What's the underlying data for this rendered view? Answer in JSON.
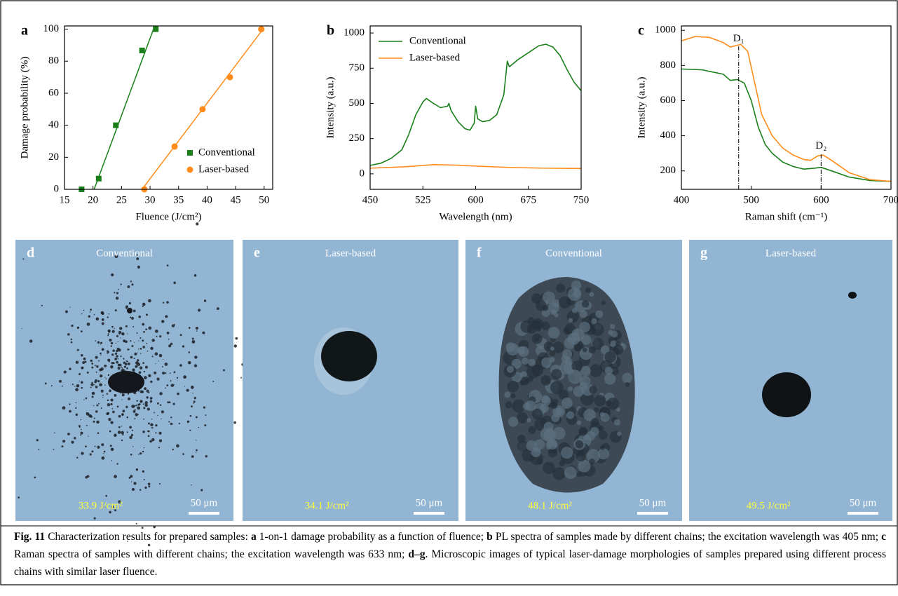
{
  "chart_data": [
    {
      "type": "scatter",
      "panel": "a",
      "x_label": "Fluence (J/cm²)",
      "y_label": "Damage probability (%)",
      "xlim": [
        15,
        51.5
      ],
      "ylim": [
        0,
        102
      ],
      "xticks": [
        15,
        20,
        25,
        30,
        35,
        40,
        45,
        50
      ],
      "yticks": [
        0,
        20,
        40,
        60,
        80,
        100
      ],
      "legend": "lower right",
      "series": [
        {
          "name": "Conventional",
          "color": "#1a7f1a",
          "marker": "square",
          "x": [
            18,
            21,
            24,
            28.6,
            31
          ],
          "values": [
            0,
            6.7,
            40,
            86.7,
            100
          ],
          "fit": {
            "x": [
              20.2,
              30.6
            ],
            "values": [
              0,
              100
            ]
          }
        },
        {
          "name": "Laser-based",
          "color": "#ff8c1a",
          "marker": "circle",
          "x": [
            29,
            34.3,
            39.2,
            44,
            49.5
          ],
          "values": [
            0,
            26.7,
            50,
            70,
            100
          ],
          "fit": {
            "x": [
              28.6,
              49.8
            ],
            "values": [
              0,
              100
            ]
          }
        }
      ]
    },
    {
      "type": "line",
      "panel": "b",
      "x_label": "Wavelength (nm)",
      "y_label": "Intensity (a.u.)",
      "xlim": [
        450,
        750
      ],
      "ylim": [
        -110,
        1050
      ],
      "xticks": [
        450,
        525,
        600,
        675,
        750
      ],
      "yticks": [
        0,
        250,
        500,
        750,
        1000
      ],
      "legend": "upper left",
      "series": [
        {
          "name": "Conventional",
          "color": "#1a7f1a",
          "x": [
            450,
            465,
            480,
            495,
            505,
            515,
            525,
            530,
            540,
            550,
            560,
            562,
            565,
            575,
            585,
            592,
            598,
            600,
            603,
            610,
            620,
            630,
            640,
            645,
            648,
            660,
            675,
            690,
            700,
            710,
            720,
            730,
            740,
            750
          ],
          "values": [
            60,
            75,
            110,
            170,
            280,
            420,
            510,
            535,
            500,
            470,
            480,
            500,
            450,
            370,
            320,
            310,
            360,
            480,
            390,
            370,
            380,
            420,
            560,
            800,
            760,
            810,
            860,
            910,
            920,
            900,
            840,
            740,
            650,
            590
          ]
        },
        {
          "name": "Laser-based",
          "color": "#ff8c1a",
          "x": [
            450,
            500,
            540,
            570,
            600,
            650,
            700,
            750
          ],
          "values": [
            40,
            50,
            65,
            62,
            55,
            45,
            40,
            38
          ]
        }
      ]
    },
    {
      "type": "line",
      "panel": "c",
      "x_label": "Raman shift (cm⁻¹)",
      "y_label": "Intensity (a.u.)",
      "xlim": [
        400,
        700
      ],
      "ylim": [
        95,
        1025
      ],
      "xticks": [
        400,
        500,
        600,
        700
      ],
      "yticks": [
        200,
        400,
        600,
        800,
        1000
      ],
      "series": [
        {
          "color": "#1a7f1a",
          "x": [
            400,
            430,
            460,
            470,
            480,
            490,
            500,
            510,
            520,
            530,
            545,
            560,
            575,
            590,
            600,
            615,
            640,
            670,
            700
          ],
          "values": [
            780,
            775,
            750,
            715,
            720,
            700,
            600,
            450,
            350,
            300,
            250,
            225,
            210,
            215,
            220,
            200,
            165,
            145,
            140
          ]
        },
        {
          "color": "#ff8c1a",
          "x": [
            400,
            420,
            440,
            460,
            470,
            485,
            495,
            505,
            515,
            530,
            545,
            560,
            575,
            585,
            595,
            603,
            615,
            640,
            670,
            700
          ],
          "values": [
            940,
            965,
            960,
            930,
            905,
            920,
            880,
            700,
            520,
            400,
            330,
            290,
            265,
            260,
            285,
            290,
            260,
            190,
            150,
            140
          ]
        }
      ],
      "annotations": [
        {
          "text": "D₁",
          "x": 482,
          "y": 950
        },
        {
          "text": "D₂",
          "x": 600,
          "y": 340
        }
      ]
    }
  ],
  "image_panels": [
    {
      "panel": "d",
      "title": "Conventional",
      "fluence": "33.9 J/cm²",
      "scale": "50 μm"
    },
    {
      "panel": "e",
      "title": "Laser-based",
      "fluence": "34.1 J/cm²",
      "scale": "50 μm"
    },
    {
      "panel": "f",
      "title": "Conventional",
      "fluence": "48.1 J/cm²",
      "scale": "50 μm"
    },
    {
      "panel": "g",
      "title": "Laser-based",
      "fluence": "49.5 J/cm²",
      "scale": "50 μm"
    }
  ],
  "caption": [
    {
      "text": "Fig. 11",
      "bold": true
    },
    {
      "text": " Characterization results for prepared samples: "
    },
    {
      "text": "a",
      "bold": true
    },
    {
      "text": " 1-on-1 damage probability as a function of fluence; "
    },
    {
      "text": "b",
      "bold": true
    },
    {
      "text": " PL spectra of samples made by different chains; the excitation wavelength was 405 nm; "
    },
    {
      "text": "c",
      "bold": true
    },
    {
      "text": " Raman spectra of samples with different chains; the excitation wavelength was 633 nm; "
    },
    {
      "text": "d–g",
      "bold": true
    },
    {
      "text": ". Microscopic images of typical laser-damage morphologies of samples prepared using different process chains with similar laser fluence."
    }
  ]
}
